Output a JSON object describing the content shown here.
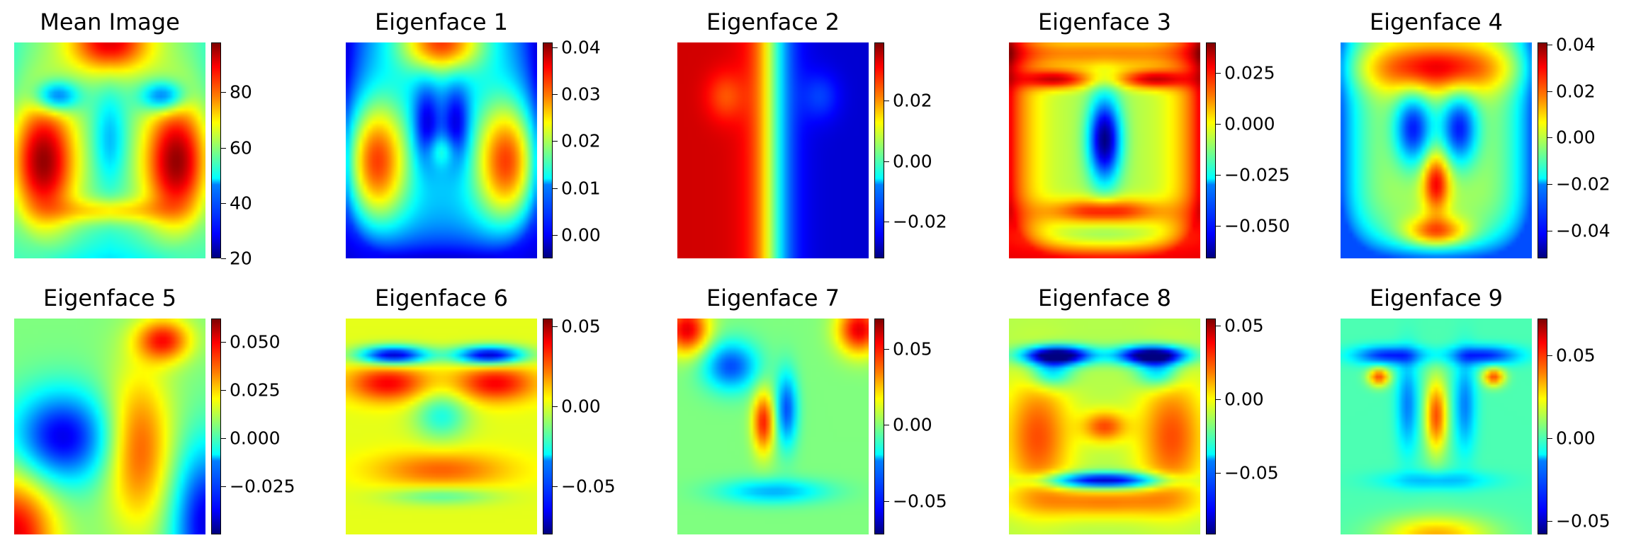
{
  "panels": [
    {
      "title": "Mean Image",
      "variant": 0,
      "colorbar": {
        "min": 20,
        "max": 98,
        "ticks": [
          20,
          40,
          60,
          80
        ],
        "labels": [
          "20",
          "40",
          "60",
          "80"
        ]
      }
    },
    {
      "title": "Eigenface 1",
      "variant": 1,
      "colorbar": {
        "min": -0.005,
        "max": 0.041,
        "ticks": [
          0.0,
          0.01,
          0.02,
          0.03,
          0.04
        ],
        "labels": [
          "0.00",
          "0.01",
          "0.02",
          "0.03",
          "0.04"
        ]
      }
    },
    {
      "title": "Eigenface 2",
      "variant": 2,
      "colorbar": {
        "min": -0.032,
        "max": 0.039,
        "ticks": [
          -0.02,
          0.0,
          0.02
        ],
        "labels": [
          "−0.02",
          "0.00",
          "0.02"
        ]
      }
    },
    {
      "title": "Eigenface 3",
      "variant": 3,
      "colorbar": {
        "min": -0.066,
        "max": 0.04,
        "ticks": [
          -0.05,
          -0.025,
          0.0,
          0.025
        ],
        "labels": [
          "−0.050",
          "−0.025",
          "0.000",
          "0.025"
        ]
      }
    },
    {
      "title": "Eigenface 4",
      "variant": 4,
      "colorbar": {
        "min": -0.052,
        "max": 0.041,
        "ticks": [
          -0.04,
          -0.02,
          0.0,
          0.02,
          0.04
        ],
        "labels": [
          "−0.04",
          "−0.02",
          "0.00",
          "0.02",
          "0.04"
        ]
      }
    },
    {
      "title": "Eigenface 5",
      "variant": 5,
      "colorbar": {
        "min": -0.05,
        "max": 0.062,
        "ticks": [
          -0.025,
          0.0,
          0.025,
          0.05
        ],
        "labels": [
          "−0.025",
          "0.000",
          "0.025",
          "0.050"
        ]
      }
    },
    {
      "title": "Eigenface 6",
      "variant": 6,
      "colorbar": {
        "min": -0.08,
        "max": 0.055,
        "ticks": [
          -0.05,
          0.0,
          0.05
        ],
        "labels": [
          "−0.05",
          "0.00",
          "0.05"
        ]
      }
    },
    {
      "title": "Eigenface 7",
      "variant": 7,
      "colorbar": {
        "min": -0.072,
        "max": 0.07,
        "ticks": [
          -0.05,
          0.0,
          0.05
        ],
        "labels": [
          "−0.05",
          "0.00",
          "0.05"
        ]
      }
    },
    {
      "title": "Eigenface 8",
      "variant": 8,
      "colorbar": {
        "min": -0.092,
        "max": 0.055,
        "ticks": [
          -0.05,
          0.0,
          0.05
        ],
        "labels": [
          "−0.05",
          "0.00",
          "0.05"
        ]
      }
    },
    {
      "title": "Eigenface 9",
      "variant": 9,
      "colorbar": {
        "min": -0.058,
        "max": 0.072,
        "ticks": [
          -0.05,
          0.0,
          0.05
        ],
        "labels": [
          "−0.05",
          "0.00",
          "0.05"
        ]
      }
    }
  ]
}
